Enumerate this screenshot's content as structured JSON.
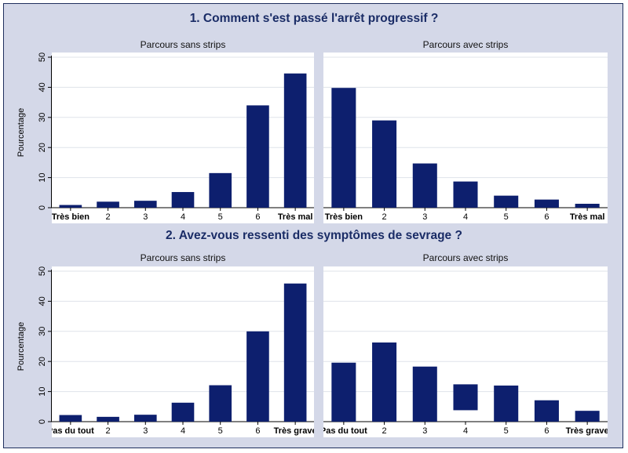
{
  "colors": {
    "bar": "#0d1f6e",
    "frame_bg": "#d4d8e8",
    "title": "#1a2c66",
    "grid": "#dfe3ea"
  },
  "sections": [
    {
      "title": "1. Comment s'est passé l'arrêt progressif ?"
    },
    {
      "title": "2. Avez-vous ressenti des symptômes de sevrage ?"
    }
  ],
  "chart_data": [
    {
      "type": "bar",
      "section": 0,
      "panel_title": "Parcours sans strips",
      "ylabel": "Pourcentage",
      "ylim": [
        0,
        50
      ],
      "yticks": [
        0,
        10,
        20,
        30,
        40,
        50
      ],
      "grid": true,
      "categories": [
        "Très bien",
        "2",
        "3",
        "4",
        "5",
        "6",
        "Très mal"
      ],
      "values": [
        0.9,
        2.0,
        2.3,
        5.2,
        11.5,
        34.0,
        44.6
      ]
    },
    {
      "type": "bar",
      "section": 0,
      "panel_title": "Parcours avec strips",
      "ylabel": "",
      "ylim": [
        0,
        50
      ],
      "yticks": [
        0,
        10,
        20,
        30,
        40,
        50
      ],
      "grid": true,
      "categories": [
        "Très bien",
        "2",
        "3",
        "4",
        "5",
        "6",
        "Très mal"
      ],
      "values": [
        39.8,
        29.0,
        14.7,
        8.7,
        4.0,
        2.7,
        1.3
      ]
    },
    {
      "type": "bar",
      "section": 1,
      "panel_title": "Parcours sans strips",
      "ylabel": "Pourcentage",
      "ylim": [
        0,
        50
      ],
      "yticks": [
        0,
        10,
        20,
        30,
        40,
        50
      ],
      "grid": true,
      "categories": [
        "Pas du tout",
        "2",
        "3",
        "4",
        "5",
        "6",
        "Très grave"
      ],
      "values": [
        2.2,
        1.6,
        2.3,
        6.3,
        12.1,
        30.0,
        45.9
      ]
    },
    {
      "type": "bar",
      "section": 1,
      "panel_title": "Parcours avec strips",
      "ylabel": "",
      "ylim": [
        0,
        50
      ],
      "yticks": [
        0,
        10,
        20,
        30,
        40,
        50
      ],
      "grid": true,
      "categories": [
        "Pas du tout",
        "2",
        "3",
        "4",
        "5",
        "6",
        "Très grave"
      ],
      "values": [
        19.6,
        26.3,
        18.3,
        12.4,
        12.0,
        7.1,
        3.6
      ],
      "bar_bottoms": [
        0,
        0,
        0,
        3.8,
        0,
        0,
        0
      ]
    }
  ]
}
